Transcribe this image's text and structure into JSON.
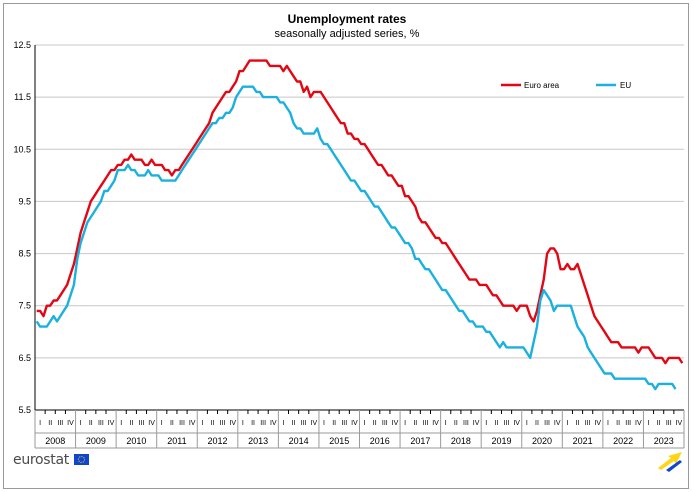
{
  "chart_data": {
    "type": "line",
    "title": "Unemployment rates",
    "subtitle": "seasonally adjusted series, %",
    "xlabel": "",
    "ylabel": "",
    "ylim": [
      5.5,
      12.5
    ],
    "yticks": [
      "5.5",
      "6.5",
      "7.5",
      "8.5",
      "9.5",
      "10.5",
      "11.5",
      "12.5"
    ],
    "grid": true,
    "legend_position": "top-right",
    "years": [
      "2008",
      "2009",
      "2010",
      "2011",
      "2012",
      "2013",
      "2014",
      "2015",
      "2016",
      "2017",
      "2018",
      "2019",
      "2020",
      "2021",
      "2022",
      "2023"
    ],
    "quarters": [
      "I",
      "II",
      "III",
      "IV"
    ],
    "x_start": "2008-01",
    "frequency": "monthly",
    "series": [
      {
        "name": "Euro area",
        "color": "#e30613",
        "values": [
          7.4,
          7.4,
          7.3,
          7.5,
          7.5,
          7.6,
          7.6,
          7.7,
          7.8,
          7.9,
          8.1,
          8.3,
          8.6,
          8.9,
          9.1,
          9.3,
          9.5,
          9.6,
          9.7,
          9.8,
          9.9,
          10.0,
          10.1,
          10.1,
          10.2,
          10.2,
          10.3,
          10.3,
          10.4,
          10.3,
          10.3,
          10.3,
          10.2,
          10.2,
          10.3,
          10.2,
          10.2,
          10.2,
          10.1,
          10.1,
          10.0,
          10.1,
          10.1,
          10.2,
          10.3,
          10.4,
          10.5,
          10.6,
          10.7,
          10.8,
          10.9,
          11.0,
          11.2,
          11.3,
          11.4,
          11.5,
          11.6,
          11.6,
          11.7,
          11.8,
          12.0,
          12.0,
          12.1,
          12.2,
          12.2,
          12.2,
          12.2,
          12.2,
          12.2,
          12.1,
          12.1,
          12.1,
          12.1,
          12.0,
          12.1,
          12.0,
          11.9,
          11.8,
          11.8,
          11.6,
          11.7,
          11.5,
          11.6,
          11.6,
          11.6,
          11.5,
          11.4,
          11.3,
          11.2,
          11.1,
          11.0,
          11.0,
          10.8,
          10.8,
          10.7,
          10.7,
          10.6,
          10.6,
          10.5,
          10.4,
          10.3,
          10.2,
          10.2,
          10.1,
          10.0,
          10.0,
          9.9,
          9.8,
          9.8,
          9.6,
          9.6,
          9.5,
          9.4,
          9.2,
          9.1,
          9.1,
          9.0,
          8.9,
          8.8,
          8.8,
          8.7,
          8.7,
          8.6,
          8.5,
          8.4,
          8.3,
          8.2,
          8.1,
          8.0,
          8.0,
          8.0,
          7.9,
          7.9,
          7.9,
          7.8,
          7.7,
          7.7,
          7.6,
          7.5,
          7.5,
          7.5,
          7.5,
          7.4,
          7.5,
          7.5,
          7.5,
          7.3,
          7.2,
          7.4,
          7.7,
          8.0,
          8.5,
          8.6,
          8.6,
          8.5,
          8.2,
          8.2,
          8.3,
          8.2,
          8.2,
          8.3,
          8.1,
          7.9,
          7.7,
          7.5,
          7.3,
          7.2,
          7.1,
          7.0,
          6.9,
          6.8,
          6.8,
          6.8,
          6.7,
          6.7,
          6.7,
          6.7,
          6.7,
          6.6,
          6.7,
          6.7,
          6.7,
          6.6,
          6.5,
          6.5,
          6.5,
          6.4,
          6.5,
          6.5,
          6.5,
          6.5,
          6.4
        ]
      },
      {
        "name": "EU",
        "color": "#1ab0e0",
        "values": [
          7.2,
          7.1,
          7.1,
          7.1,
          7.2,
          7.3,
          7.2,
          7.3,
          7.4,
          7.5,
          7.7,
          7.9,
          8.4,
          8.7,
          8.9,
          9.1,
          9.2,
          9.3,
          9.4,
          9.5,
          9.7,
          9.7,
          9.8,
          9.9,
          10.1,
          10.1,
          10.1,
          10.2,
          10.1,
          10.1,
          10.0,
          10.0,
          10.0,
          10.1,
          10.0,
          10.0,
          10.0,
          9.9,
          9.9,
          9.9,
          9.9,
          9.9,
          10.0,
          10.1,
          10.2,
          10.3,
          10.4,
          10.5,
          10.6,
          10.7,
          10.8,
          10.9,
          11.0,
          11.0,
          11.1,
          11.1,
          11.2,
          11.2,
          11.3,
          11.5,
          11.6,
          11.7,
          11.7,
          11.7,
          11.7,
          11.6,
          11.6,
          11.5,
          11.5,
          11.5,
          11.5,
          11.5,
          11.4,
          11.4,
          11.3,
          11.2,
          11.0,
          10.9,
          10.9,
          10.8,
          10.8,
          10.8,
          10.8,
          10.9,
          10.7,
          10.6,
          10.6,
          10.5,
          10.4,
          10.3,
          10.2,
          10.1,
          10.0,
          9.9,
          9.9,
          9.8,
          9.7,
          9.7,
          9.6,
          9.5,
          9.4,
          9.4,
          9.3,
          9.2,
          9.1,
          9.0,
          9.0,
          8.9,
          8.8,
          8.7,
          8.7,
          8.6,
          8.4,
          8.4,
          8.3,
          8.2,
          8.2,
          8.1,
          8.0,
          7.9,
          7.8,
          7.8,
          7.7,
          7.6,
          7.5,
          7.4,
          7.4,
          7.3,
          7.2,
          7.2,
          7.1,
          7.1,
          7.1,
          7.0,
          7.0,
          6.9,
          6.8,
          6.7,
          6.8,
          6.7,
          6.7,
          6.7,
          6.7,
          6.7,
          6.7,
          6.6,
          6.5,
          6.8,
          7.1,
          7.6,
          7.8,
          7.7,
          7.6,
          7.4,
          7.5,
          7.5,
          7.5,
          7.5,
          7.5,
          7.3,
          7.1,
          7.0,
          6.9,
          6.7,
          6.6,
          6.5,
          6.4,
          6.3,
          6.2,
          6.2,
          6.2,
          6.1,
          6.1,
          6.1,
          6.1,
          6.1,
          6.1,
          6.1,
          6.1,
          6.1,
          6.1,
          6.0,
          6.0,
          5.9,
          6.0,
          6.0,
          6.0,
          6.0,
          6.0,
          5.9
        ]
      }
    ]
  },
  "legend": {
    "euro_area": "Euro area",
    "eu": "EU"
  },
  "logo": {
    "text": "eurostat"
  }
}
